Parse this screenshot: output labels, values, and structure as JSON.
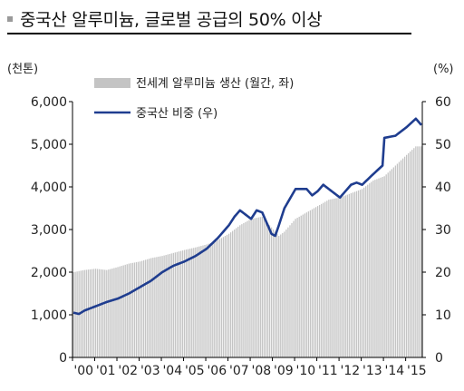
{
  "title": "중국산 알루미늄, 글로벌 공급의 50% 이상",
  "colors": {
    "bar": "#c4c4c4",
    "line": "#1f3d8f",
    "bullet": "#9a9a9a"
  },
  "chart_data": {
    "type": "bar+line",
    "title": "중국산 알루미늄, 글로벌 공급의 50% 이상",
    "y_left": {
      "unit": "(천톤)",
      "lim": [
        0,
        6000
      ],
      "ticks": [
        0,
        1000,
        2000,
        3000,
        4000,
        5000,
        6000
      ],
      "tick_labels": [
        "0",
        "1,000",
        "2,000",
        "3,000",
        "4,000",
        "5,000",
        "6,000"
      ]
    },
    "y_right": {
      "unit": "(%)",
      "lim": [
        0,
        60
      ],
      "ticks": [
        0,
        10,
        20,
        30,
        40,
        50,
        60
      ],
      "tick_labels": [
        "0",
        "10",
        "20",
        "30",
        "40",
        "50",
        "60"
      ]
    },
    "x": {
      "start": "2000-01",
      "end": "2015-09",
      "tick_labels": [
        "'00",
        "'01",
        "'02",
        "'03",
        "'04",
        "'05",
        "'06",
        "'07",
        "'08",
        "'09",
        "'10",
        "'11",
        "'12",
        "'13",
        "'14",
        "'15"
      ]
    },
    "legend": {
      "position": "top-left"
    },
    "series": [
      {
        "name": "전세계 알루미늄 생산 (월간, 좌)",
        "type": "bar",
        "axis": "left",
        "points": [
          [
            "2000-01",
            2000
          ],
          [
            "2000-07",
            2050
          ],
          [
            "2001-01",
            2080
          ],
          [
            "2001-07",
            2050
          ],
          [
            "2002-01",
            2120
          ],
          [
            "2002-07",
            2200
          ],
          [
            "2003-01",
            2250
          ],
          [
            "2003-07",
            2330
          ],
          [
            "2004-01",
            2380
          ],
          [
            "2004-07",
            2450
          ],
          [
            "2005-01",
            2520
          ],
          [
            "2005-07",
            2580
          ],
          [
            "2006-01",
            2650
          ],
          [
            "2006-07",
            2750
          ],
          [
            "2007-01",
            2900
          ],
          [
            "2007-07",
            3100
          ],
          [
            "2008-01",
            3250
          ],
          [
            "2008-07",
            3300
          ],
          [
            "2008-12",
            3050
          ],
          [
            "2009-04",
            2850
          ],
          [
            "2009-07",
            2950
          ],
          [
            "2010-01",
            3250
          ],
          [
            "2010-07",
            3400
          ],
          [
            "2011-01",
            3550
          ],
          [
            "2011-07",
            3700
          ],
          [
            "2012-01",
            3750
          ],
          [
            "2012-07",
            3850
          ],
          [
            "2013-01",
            3950
          ],
          [
            "2013-07",
            4150
          ],
          [
            "2014-01",
            4250
          ],
          [
            "2014-07",
            4500
          ],
          [
            "2015-01",
            4750
          ],
          [
            "2015-06",
            4950
          ],
          [
            "2015-09",
            4950
          ]
        ]
      },
      {
        "name": "중국산 비중 (우)",
        "type": "line",
        "axis": "right",
        "points": [
          [
            "2000-01",
            10.5
          ],
          [
            "2000-04",
            10.2
          ],
          [
            "2000-07",
            11.0
          ],
          [
            "2001-01",
            12.0
          ],
          [
            "2001-07",
            13.0
          ],
          [
            "2002-01",
            13.8
          ],
          [
            "2002-07",
            15.0
          ],
          [
            "2003-01",
            16.5
          ],
          [
            "2003-07",
            18.0
          ],
          [
            "2004-01",
            20.0
          ],
          [
            "2004-07",
            21.5
          ],
          [
            "2005-01",
            22.5
          ],
          [
            "2005-07",
            23.8
          ],
          [
            "2006-01",
            25.5
          ],
          [
            "2006-07",
            28.0
          ],
          [
            "2007-01",
            31.0
          ],
          [
            "2007-04",
            33.0
          ],
          [
            "2007-07",
            34.5
          ],
          [
            "2007-10",
            33.5
          ],
          [
            "2008-01",
            32.5
          ],
          [
            "2008-04",
            34.5
          ],
          [
            "2008-07",
            34.0
          ],
          [
            "2008-10",
            31.0
          ],
          [
            "2008-12",
            29.0
          ],
          [
            "2009-02",
            28.5
          ],
          [
            "2009-04",
            31.0
          ],
          [
            "2009-07",
            35.0
          ],
          [
            "2010-01",
            39.5
          ],
          [
            "2010-07",
            39.5
          ],
          [
            "2010-10",
            38.0
          ],
          [
            "2011-01",
            39.0
          ],
          [
            "2011-04",
            40.5
          ],
          [
            "2011-07",
            39.5
          ],
          [
            "2011-10",
            38.5
          ],
          [
            "2012-01",
            37.5
          ],
          [
            "2012-04",
            39.0
          ],
          [
            "2012-07",
            40.5
          ],
          [
            "2012-10",
            41.0
          ],
          [
            "2013-01",
            40.5
          ],
          [
            "2013-07",
            43.0
          ],
          [
            "2013-12",
            45.0
          ],
          [
            "2014-01",
            51.5
          ],
          [
            "2014-07",
            52.0
          ],
          [
            "2015-01",
            54.0
          ],
          [
            "2015-06",
            56.0
          ],
          [
            "2015-09",
            54.5
          ]
        ]
      }
    ]
  }
}
